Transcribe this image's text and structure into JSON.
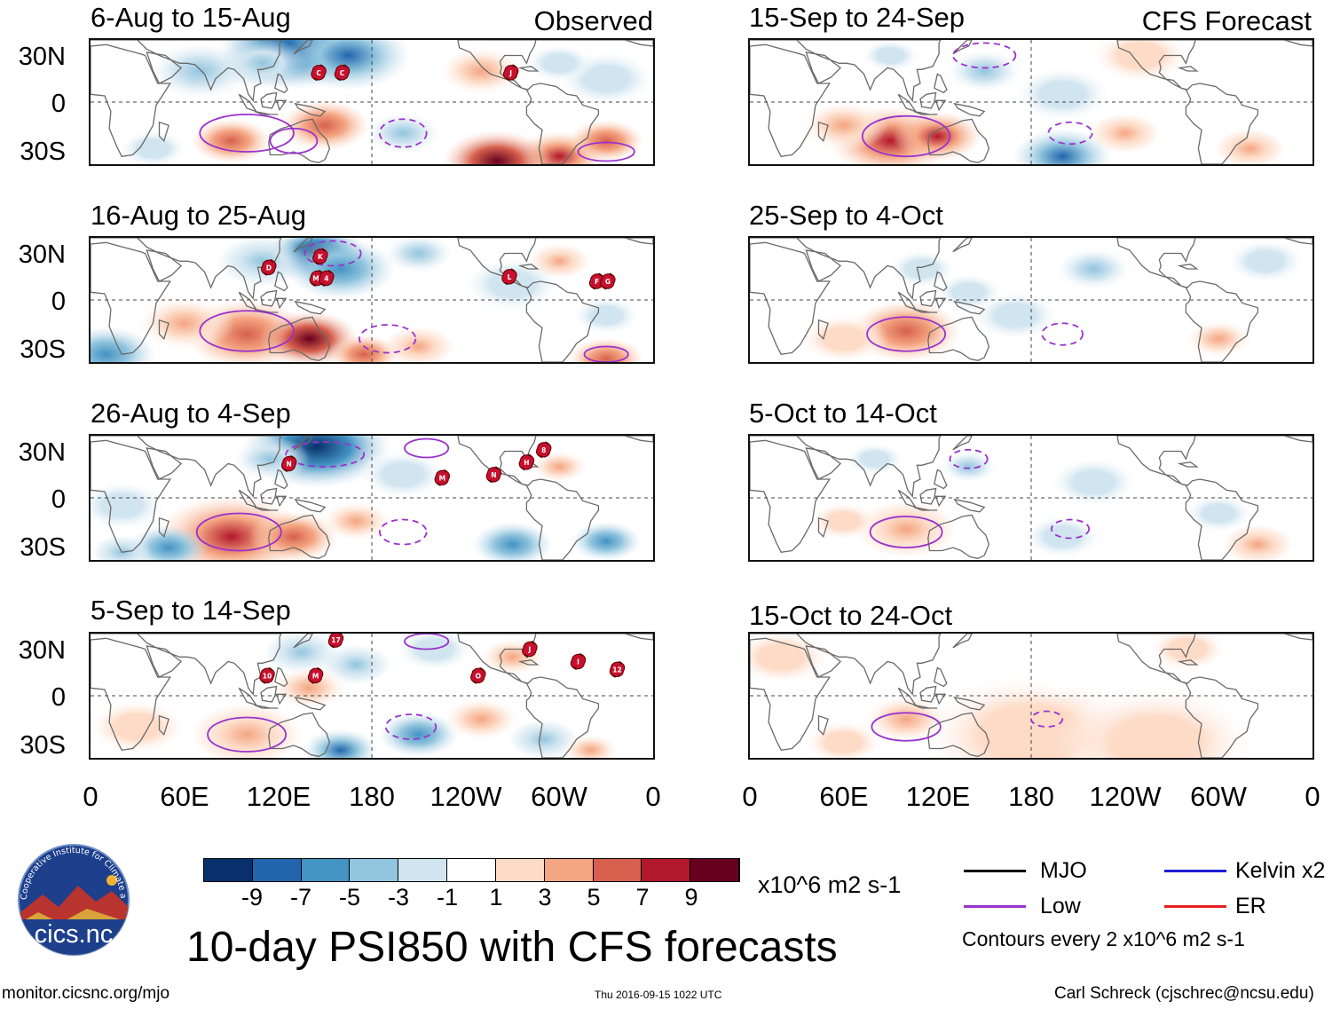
{
  "column_labels": {
    "left": "Observed",
    "right": "CFS Forecast"
  },
  "lat_labels": [
    "30N",
    "0",
    "30S"
  ],
  "lon_labels": [
    "0",
    "60E",
    "120E",
    "180",
    "120W",
    "60W",
    "0"
  ],
  "chart_data": {
    "type": "heatmap",
    "title": "10-day PSI850 with CFS forecasts",
    "variable": "10-day PSI850",
    "units": "x10^6 m2 s-1",
    "x_range": [
      0,
      360
    ],
    "y_range": [
      -40,
      40
    ],
    "contour_interval": "Contours every 2 x10^6 m2 s-1",
    "colorbar": {
      "ticks": [
        "-9",
        "-7",
        "-5",
        "-3",
        "-1",
        "1",
        "3",
        "5",
        "7",
        "9"
      ],
      "colors": [
        "#08306b",
        "#2166ac",
        "#4393c3",
        "#92c5de",
        "#d1e5f0",
        "#ffffff",
        "#fddbc7",
        "#f4a582",
        "#d6604d",
        "#b2182b",
        "#67001f"
      ]
    },
    "panels": [
      {
        "id": "p1",
        "title": "6-Aug to 15-Aug",
        "source": "Observed",
        "blobs": [
          [
            35,
            130,
            30,
            -9
          ],
          [
            30,
            165,
            25,
            -8
          ],
          [
            20,
            70,
            22,
            -4
          ],
          [
            25,
            110,
            18,
            -5
          ],
          [
            -25,
            90,
            16,
            6
          ],
          [
            -15,
            150,
            18,
            5
          ],
          [
            -35,
            300,
            18,
            8
          ],
          [
            -38,
            260,
            22,
            10
          ],
          [
            -20,
            200,
            16,
            -4
          ],
          [
            -25,
            330,
            15,
            6
          ],
          [
            20,
            250,
            18,
            3
          ],
          [
            -30,
            40,
            14,
            -3
          ],
          [
            15,
            330,
            20,
            -3
          ],
          [
            25,
            300,
            14,
            -3
          ]
        ],
        "contours": [
          {
            "lon": 100,
            "lat": -20,
            "rx": 30,
            "ry": 12,
            "style": "solid"
          },
          {
            "lon": 130,
            "lat": -25,
            "rx": 15,
            "ry": 8,
            "style": "solid"
          },
          {
            "lon": 200,
            "lat": -20,
            "rx": 15,
            "ry": 9,
            "style": "dashed"
          },
          {
            "lon": 330,
            "lat": -32,
            "rx": 18,
            "ry": 6,
            "style": "solid"
          }
        ],
        "storms": [
          {
            "lon": 146,
            "lat": 19,
            "label": "C"
          },
          {
            "lon": 161,
            "lat": 19,
            "label": "C"
          },
          {
            "lon": 269,
            "lat": 19,
            "label": "J"
          }
        ]
      },
      {
        "id": "p2",
        "title": "16-Aug to 25-Aug",
        "source": "Observed",
        "blobs": [
          [
            30,
            145,
            20,
            -11
          ],
          [
            20,
            160,
            22,
            -6
          ],
          [
            25,
            110,
            18,
            -5
          ],
          [
            -22,
            100,
            25,
            6
          ],
          [
            -25,
            140,
            20,
            9
          ],
          [
            -35,
            175,
            14,
            5
          ],
          [
            -30,
            210,
            14,
            4
          ],
          [
            -38,
            330,
            15,
            6
          ],
          [
            -35,
            10,
            20,
            -6
          ],
          [
            10,
            270,
            20,
            -3
          ],
          [
            25,
            300,
            12,
            4
          ],
          [
            -15,
            60,
            20,
            3
          ],
          [
            30,
            210,
            15,
            -4
          ],
          [
            -10,
            330,
            14,
            -3
          ]
        ],
        "contours": [
          {
            "lon": 100,
            "lat": -20,
            "rx": 30,
            "ry": 13,
            "style": "solid"
          },
          {
            "lon": 190,
            "lat": -25,
            "rx": 18,
            "ry": 9,
            "style": "dashed"
          },
          {
            "lon": 155,
            "lat": 30,
            "rx": 18,
            "ry": 8,
            "style": "dashed"
          },
          {
            "lon": 330,
            "lat": -35,
            "rx": 14,
            "ry": 5,
            "style": "solid"
          }
        ],
        "storms": [
          {
            "lon": 114,
            "lat": 21,
            "label": "D"
          },
          {
            "lon": 147,
            "lat": 28,
            "label": "K"
          },
          {
            "lon": 145,
            "lat": 14,
            "label": "MI"
          },
          {
            "lon": 151,
            "lat": 14,
            "label": "4"
          },
          {
            "lon": 268,
            "lat": 15,
            "label": "L"
          },
          {
            "lon": 324,
            "lat": 12,
            "label": "F"
          },
          {
            "lon": 331,
            "lat": 12,
            "label": "G"
          }
        ]
      },
      {
        "id": "p3",
        "title": "26-Aug to 4-Sep",
        "source": "Observed",
        "blobs": [
          [
            33,
            145,
            30,
            -11
          ],
          [
            25,
            115,
            16,
            -4
          ],
          [
            -25,
            90,
            30,
            7
          ],
          [
            -25,
            130,
            18,
            5
          ],
          [
            -32,
            50,
            16,
            -6
          ],
          [
            -35,
            20,
            12,
            -5
          ],
          [
            -30,
            270,
            16,
            -7
          ],
          [
            -28,
            330,
            14,
            -6
          ],
          [
            -15,
            170,
            15,
            3
          ],
          [
            20,
            300,
            12,
            3
          ],
          [
            15,
            200,
            18,
            -3
          ],
          [
            -5,
            20,
            18,
            -3
          ]
        ],
        "contours": [
          {
            "lon": 95,
            "lat": -22,
            "rx": 27,
            "ry": 12,
            "style": "solid"
          },
          {
            "lon": 200,
            "lat": -22,
            "rx": 15,
            "ry": 8,
            "style": "dashed"
          },
          {
            "lon": 150,
            "lat": 28,
            "rx": 25,
            "ry": 8,
            "style": "dashed"
          },
          {
            "lon": 215,
            "lat": 32,
            "rx": 14,
            "ry": 6,
            "style": "solid"
          }
        ],
        "storms": [
          {
            "lon": 127,
            "lat": 22,
            "label": "N"
          },
          {
            "lon": 225,
            "lat": 13,
            "label": "M"
          },
          {
            "lon": 258,
            "lat": 15,
            "label": "N"
          },
          {
            "lon": 279,
            "lat": 23,
            "label": "H"
          },
          {
            "lon": 290,
            "lat": 31,
            "label": "8"
          }
        ]
      },
      {
        "id": "p4",
        "title": "5-Sep to 14-Sep",
        "source": "Observed",
        "blobs": [
          [
            28,
            135,
            15,
            -5
          ],
          [
            20,
            170,
            14,
            -5
          ],
          [
            -25,
            100,
            22,
            4
          ],
          [
            -35,
            160,
            15,
            -8
          ],
          [
            -25,
            210,
            16,
            -7
          ],
          [
            -28,
            290,
            14,
            -5
          ],
          [
            -35,
            320,
            12,
            3
          ],
          [
            -15,
            250,
            16,
            3
          ],
          [
            25,
            270,
            14,
            3
          ],
          [
            -20,
            30,
            20,
            2
          ],
          [
            5,
            140,
            16,
            3
          ],
          [
            30,
            220,
            16,
            -3
          ]
        ],
        "contours": [
          {
            "lon": 100,
            "lat": -25,
            "rx": 25,
            "ry": 11,
            "style": "solid"
          },
          {
            "lon": 205,
            "lat": -20,
            "rx": 16,
            "ry": 8,
            "style": "dashed"
          },
          {
            "lon": 215,
            "lat": 35,
            "rx": 14,
            "ry": 5,
            "style": "solid"
          }
        ],
        "storms": [
          {
            "lon": 113,
            "lat": 13,
            "label": "10"
          },
          {
            "lon": 144,
            "lat": 13,
            "label": "M"
          },
          {
            "lon": 157,
            "lat": 36,
            "label": "17"
          },
          {
            "lon": 248,
            "lat": 13,
            "label": "O"
          },
          {
            "lon": 281,
            "lat": 30,
            "label": "J"
          },
          {
            "lon": 312,
            "lat": 22,
            "label": "I"
          },
          {
            "lon": 337,
            "lat": 17,
            "label": "12"
          }
        ]
      },
      {
        "id": "p5",
        "title": "15-Sep to 24-Sep",
        "source": "CFS Forecast",
        "blobs": [
          [
            -25,
            90,
            25,
            8
          ],
          [
            -22,
            120,
            18,
            7
          ],
          [
            -35,
            200,
            20,
            -8
          ],
          [
            -15,
            60,
            18,
            3
          ],
          [
            20,
            150,
            16,
            -4
          ],
          [
            30,
            90,
            12,
            -3
          ],
          [
            -30,
            320,
            14,
            4
          ],
          [
            -20,
            240,
            14,
            4
          ],
          [
            30,
            250,
            20,
            2
          ],
          [
            5,
            200,
            20,
            -2
          ]
        ],
        "contours": [
          {
            "lon": 100,
            "lat": -22,
            "rx": 28,
            "ry": 13,
            "style": "solid"
          },
          {
            "lon": 205,
            "lat": -20,
            "rx": 14,
            "ry": 7,
            "style": "dashed"
          },
          {
            "lon": 150,
            "lat": 30,
            "rx": 20,
            "ry": 8,
            "style": "dashed"
          }
        ],
        "storms": []
      },
      {
        "id": "p6",
        "title": "25-Sep to 4-Oct",
        "source": "CFS Forecast",
        "blobs": [
          [
            -20,
            100,
            22,
            5
          ],
          [
            -25,
            60,
            18,
            2
          ],
          [
            20,
            110,
            14,
            -3
          ],
          [
            20,
            220,
            16,
            -4
          ],
          [
            -10,
            170,
            18,
            -2
          ],
          [
            -25,
            300,
            14,
            3
          ],
          [
            25,
            330,
            16,
            -2
          ],
          [
            5,
            140,
            14,
            -2
          ]
        ],
        "contours": [
          {
            "lon": 100,
            "lat": -22,
            "rx": 25,
            "ry": 11,
            "style": "solid"
          },
          {
            "lon": 200,
            "lat": -22,
            "rx": 13,
            "ry": 7,
            "style": "dashed"
          }
        ],
        "storms": []
      },
      {
        "id": "p7",
        "title": "5-Oct to 14-Oct",
        "source": "CFS Forecast",
        "blobs": [
          [
            -20,
            100,
            20,
            4
          ],
          [
            -30,
            325,
            14,
            4
          ],
          [
            20,
            140,
            12,
            -4
          ],
          [
            10,
            220,
            18,
            -2
          ],
          [
            -10,
            300,
            14,
            -2
          ],
          [
            -25,
            200,
            16,
            -2
          ],
          [
            25,
            80,
            12,
            -2
          ],
          [
            -15,
            60,
            14,
            2
          ]
        ],
        "contours": [
          {
            "lon": 100,
            "lat": -22,
            "rx": 23,
            "ry": 10,
            "style": "solid"
          },
          {
            "lon": 205,
            "lat": -20,
            "rx": 12,
            "ry": 6,
            "style": "dashed"
          },
          {
            "lon": 140,
            "lat": 25,
            "rx": 12,
            "ry": 6,
            "style": "dashed"
          }
        ],
        "storms": []
      },
      {
        "id": "p8",
        "title": "15-Oct to 24-Oct",
        "source": "CFS Forecast",
        "blobs": [
          [
            -25,
            180,
            45,
            2
          ],
          [
            -30,
            260,
            40,
            2
          ],
          [
            -15,
            100,
            18,
            3
          ],
          [
            25,
            20,
            20,
            2
          ],
          [
            15,
            200,
            20,
            -1
          ],
          [
            30,
            280,
            16,
            2
          ],
          [
            -30,
            60,
            16,
            2
          ]
        ],
        "contours": [
          {
            "lon": 100,
            "lat": -20,
            "rx": 22,
            "ry": 9,
            "style": "solid"
          },
          {
            "lon": 190,
            "lat": -15,
            "rx": 10,
            "ry": 5,
            "style": "dashed"
          }
        ],
        "storms": []
      }
    ]
  },
  "legend": {
    "items": [
      {
        "label": "MJO",
        "color": "#000000"
      },
      {
        "label": "Kelvin x2",
        "color": "#1f1fd6"
      },
      {
        "label": "Low",
        "color": "#9a32cd"
      },
      {
        "label": "ER",
        "color": "#e62020"
      }
    ],
    "contour_note": "Contours every 2 x10^6 m2 s-1"
  },
  "logo": {
    "text": "cics.nc",
    "ring_text": "Cooperative Institute for Climate and Satellites"
  },
  "footer": {
    "url": "monitor.cicsnc.org/mjo",
    "timestamp": "Thu 2016-09-15 1022 UTC",
    "credit": "Carl Schreck (cjschrec@ncsu.edu)"
  }
}
